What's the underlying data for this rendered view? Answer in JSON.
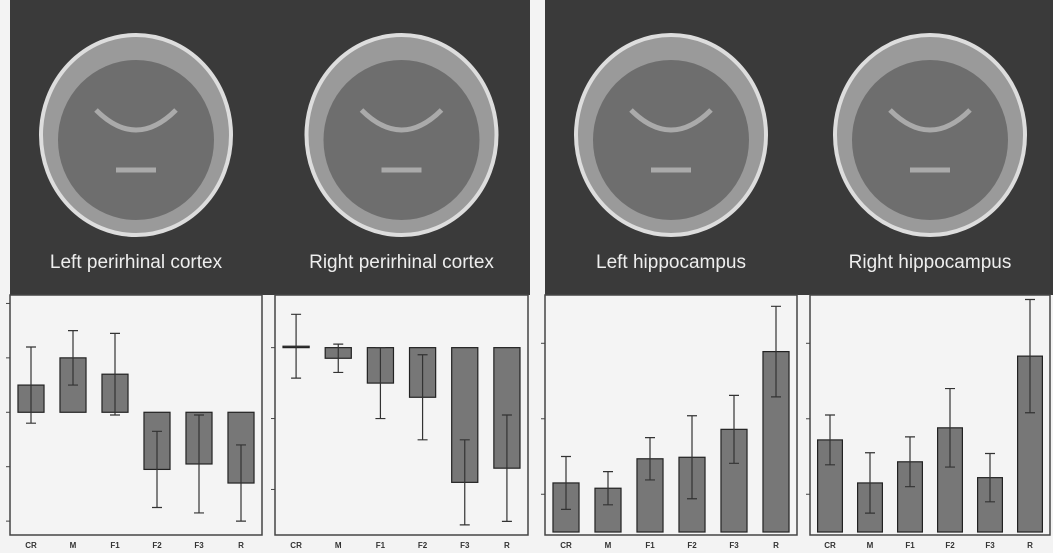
{
  "chart_data": [
    {
      "type": "bar",
      "title": "Left perirhinal cortex",
      "categories": [
        "CR",
        "M",
        "F1",
        "F2",
        "F3",
        "R"
      ],
      "values": [
        0.5,
        1.0,
        0.7,
        -1.05,
        -0.95,
        -1.3
      ],
      "errors": [
        0.7,
        0.5,
        0.75,
        0.7,
        0.9,
        0.7
      ],
      "color": "#777777",
      "ylim": [
        -2.2,
        2.1
      ],
      "yticks": [
        -2,
        -1,
        0,
        1,
        2
      ]
    },
    {
      "type": "bar",
      "title": "Right perirhinal cortex",
      "categories": [
        "CR",
        "M",
        "F1",
        "F2",
        "F3",
        "R"
      ],
      "values": [
        0.02,
        -0.15,
        -0.5,
        -0.7,
        -1.9,
        -1.7
      ],
      "errors": [
        0.45,
        0.2,
        0.5,
        0.6,
        0.6,
        0.75
      ],
      "color": "#777777",
      "ylim": [
        -2.6,
        0.7
      ],
      "yticks": [
        -2,
        -1,
        0
      ]
    },
    {
      "type": "bar",
      "title": "Left hippocampus",
      "categories": [
        "CR",
        "M",
        "F1",
        "F2",
        "F3",
        "R"
      ],
      "values": [
        0.65,
        0.58,
        0.97,
        0.99,
        1.36,
        2.39
      ],
      "errors": [
        0.35,
        0.22,
        0.28,
        0.55,
        0.45,
        0.6
      ],
      "color": "#777777",
      "ylim": [
        0,
        3.1
      ],
      "yticks": [
        0.5,
        1.5,
        2.5
      ]
    },
    {
      "type": "bar",
      "title": "Right hippocampus",
      "categories": [
        "CR",
        "M",
        "F1",
        "F2",
        "F3",
        "R"
      ],
      "values": [
        1.22,
        0.65,
        0.93,
        1.38,
        0.72,
        2.33
      ],
      "errors": [
        0.33,
        0.4,
        0.33,
        0.52,
        0.32,
        0.75
      ],
      "color": "#777777",
      "ylim": [
        0,
        3.1
      ],
      "yticks": [
        0.5,
        1.5,
        2.5
      ]
    }
  ]
}
